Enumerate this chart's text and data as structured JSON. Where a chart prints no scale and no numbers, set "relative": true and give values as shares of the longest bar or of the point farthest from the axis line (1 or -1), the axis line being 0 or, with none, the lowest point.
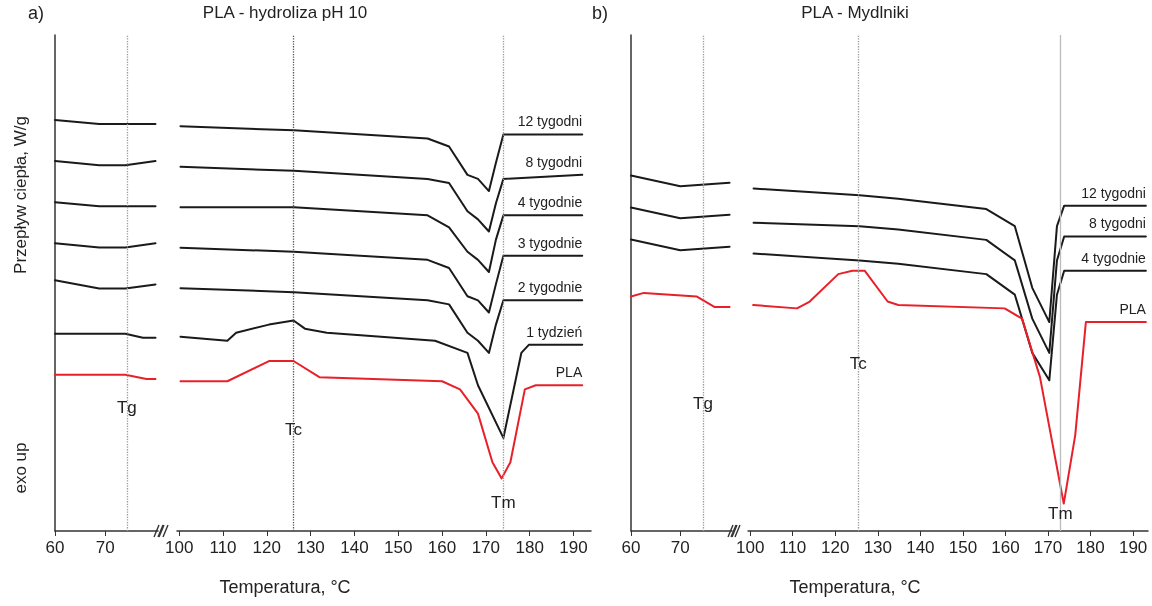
{
  "chart_data": [
    {
      "type": "line",
      "ylabel": "Przepływ ciepła, W/g",
      "relative": true,
      "marker": "none",
      "xlim": [
        60,
        80.5
      ],
      "xticks": [
        60,
        70
      ],
      "series": [
        {
          "color": "#1a1a1a",
          "x": [
            60,
            68.8,
            74,
            80
          ],
          "values": [
            1.0,
            0.99,
            0.99,
            0.99
          ]
        },
        {
          "color": "#1a1a1a",
          "x": [
            60,
            68.8,
            74,
            80
          ],
          "values": [
            0.9,
            0.89,
            0.89,
            0.9
          ]
        },
        {
          "color": "#1a1a1a",
          "x": [
            60,
            68.8,
            74,
            80
          ],
          "values": [
            0.8,
            0.79,
            0.79,
            0.79
          ]
        },
        {
          "color": "#1a1a1a",
          "x": [
            60,
            68.8,
            74,
            80
          ],
          "values": [
            0.7,
            0.69,
            0.69,
            0.7
          ]
        },
        {
          "color": "#1a1a1a",
          "x": [
            60,
            68.8,
            74,
            80
          ],
          "values": [
            0.61,
            0.59,
            0.59,
            0.6
          ]
        },
        {
          "color": "#1a1a1a",
          "x": [
            60,
            74,
            77.5,
            80
          ],
          "values": [
            0.48,
            0.48,
            0.47,
            0.47
          ]
        },
        {
          "color": "#e8202a",
          "x": [
            60,
            74,
            78.2,
            80
          ],
          "values": [
            0.38,
            0.38,
            0.37,
            0.37
          ]
        }
      ],
      "ref_lines": [
        {
          "axis": "x",
          "value": 74.3,
          "color": "#999999",
          "line_style": "dotted"
        }
      ],
      "annotations": [
        "a)",
        "exo up",
        {
          "text": "Tg",
          "x": 74.3,
          "y": 0.3
        }
      ]
    },
    {
      "type": "line",
      "title": "PLA - hydroliza pH 10",
      "xlabel": "Temperatura, °C",
      "relative": true,
      "marker": "none",
      "xlim": [
        99.5,
        194
      ],
      "xticks": [
        100,
        110,
        120,
        130,
        140,
        150,
        160,
        170,
        180,
        190
      ],
      "series": [
        {
          "name": "12 tygodni",
          "color": "#1a1a1a",
          "x": [
            100.3,
            126.2,
            156.7,
            161.6,
            165.8,
            168.2,
            170.7,
            172.3,
            174,
            192
          ],
          "values": [
            1.0,
            0.99,
            0.97,
            0.95,
            0.88,
            0.87,
            0.84,
            0.91,
            0.98,
            0.98
          ]
        },
        {
          "name": "8 tygodni",
          "color": "#1a1a1a",
          "x": [
            100.3,
            126.2,
            156.7,
            161.6,
            165.8,
            168.2,
            170.7,
            172.3,
            174,
            192
          ],
          "values": [
            0.9,
            0.89,
            0.87,
            0.86,
            0.79,
            0.77,
            0.74,
            0.81,
            0.87,
            0.88
          ]
        },
        {
          "name": "4 tygodnie",
          "color": "#1a1a1a",
          "x": [
            100.3,
            126.2,
            156.7,
            161.6,
            165.8,
            168.2,
            170.7,
            172.3,
            174,
            192
          ],
          "values": [
            0.8,
            0.8,
            0.78,
            0.75,
            0.69,
            0.67,
            0.64,
            0.72,
            0.78,
            0.78
          ]
        },
        {
          "name": "3 tygodnie",
          "color": "#1a1a1a",
          "x": [
            100.3,
            126.2,
            156.7,
            161.6,
            165.8,
            168.2,
            170.7,
            172.3,
            174,
            192
          ],
          "values": [
            0.7,
            0.69,
            0.67,
            0.65,
            0.58,
            0.57,
            0.54,
            0.61,
            0.68,
            0.68
          ]
        },
        {
          "name": "2 tygodnie",
          "color": "#1a1a1a",
          "x": [
            100.3,
            126.2,
            156.7,
            161.6,
            165.8,
            168.2,
            170.7,
            172.3,
            174,
            192
          ],
          "values": [
            0.6,
            0.59,
            0.57,
            0.56,
            0.49,
            0.47,
            0.44,
            0.51,
            0.57,
            0.57
          ]
        },
        {
          "name": "1 tydzień",
          "color": "#1a1a1a",
          "x": [
            100.3,
            111,
            113,
            120.5,
            126.1,
            128.7,
            133.7,
            158.4,
            165.8,
            168.2,
            174,
            178.1,
            179.8,
            192
          ],
          "values": [
            0.48,
            0.47,
            0.49,
            0.51,
            0.52,
            0.5,
            0.49,
            0.47,
            0.44,
            0.36,
            0.23,
            0.44,
            0.46,
            0.46
          ]
        },
        {
          "name": "PLA",
          "color": "#e8202a",
          "x": [
            100.3,
            111,
            120.5,
            126.1,
            132,
            160,
            164.1,
            168.2,
            171.5,
            173.6,
            175.6,
            178.9,
            181.4,
            192
          ],
          "values": [
            0.37,
            0.37,
            0.42,
            0.42,
            0.38,
            0.37,
            0.35,
            0.29,
            0.17,
            0.13,
            0.17,
            0.35,
            0.36,
            0.36
          ]
        }
      ],
      "ref_lines": [
        {
          "axis": "x",
          "value": 126.1,
          "color": "#555555",
          "line_style": "dotted"
        },
        {
          "axis": "x",
          "value": 174,
          "color": "#999999",
          "line_style": "dotted"
        }
      ],
      "annotations": [
        {
          "text": "Tc",
          "x": 126.1,
          "y": 0.25
        },
        {
          "text": "Tm",
          "x": 174,
          "y": 0.07
        }
      ]
    },
    {
      "type": "line",
      "relative": true,
      "marker": "none",
      "xlim": [
        60,
        80.5
      ],
      "xticks": [
        60,
        70
      ],
      "series": [
        {
          "color": "#1a1a1a",
          "x": [
            60,
            70,
            80
          ],
          "values": [
            1.0,
            0.97,
            0.98
          ]
        },
        {
          "color": "#1a1a1a",
          "x": [
            60,
            70,
            80
          ],
          "values": [
            0.91,
            0.88,
            0.89
          ]
        },
        {
          "color": "#1a1a1a",
          "x": [
            60,
            70,
            80
          ],
          "values": [
            0.82,
            0.79,
            0.8
          ]
        },
        {
          "color": "#e8202a",
          "x": [
            60,
            62.6,
            73.3,
            77,
            80
          ],
          "values": [
            0.66,
            0.67,
            0.66,
            0.63,
            0.63
          ]
        }
      ],
      "ref_lines": [
        {
          "axis": "x",
          "value": 74.6,
          "color": "#999999",
          "line_style": "dotted"
        }
      ],
      "annotations": [
        "b)",
        {
          "text": "Tg",
          "x": 74.6,
          "y": 0.36
        }
      ]
    },
    {
      "type": "line",
      "title": "PLA - Mydlniki",
      "xlabel": "Temperatura, °C",
      "relative": true,
      "marker": "none",
      "xlim": [
        99.5,
        193.5
      ],
      "xticks": [
        100,
        110,
        120,
        130,
        140,
        150,
        160,
        170,
        180,
        190
      ],
      "series": [
        {
          "name": "12 tygodni",
          "color": "#1a1a1a",
          "x": [
            100.8,
            125.7,
            134.8,
            155.5,
            162.2,
            166.3,
            170.3,
            172.1,
            173.8,
            193
          ],
          "values": [
            1.0,
            0.98,
            0.97,
            0.94,
            0.89,
            0.71,
            0.61,
            0.89,
            0.95,
            0.95
          ]
        },
        {
          "name": "8 tygodni",
          "color": "#1a1a1a",
          "x": [
            100.8,
            125.7,
            134.8,
            155.5,
            162.2,
            166.3,
            170.3,
            172.1,
            173.8,
            193
          ],
          "values": [
            0.9,
            0.89,
            0.88,
            0.85,
            0.79,
            0.62,
            0.52,
            0.79,
            0.86,
            0.86
          ]
        },
        {
          "name": "4 tygodnie",
          "color": "#1a1a1a",
          "x": [
            100.8,
            125.7,
            134.8,
            155.5,
            162.2,
            166.3,
            170.3,
            172.1,
            173.8,
            193
          ],
          "values": [
            0.81,
            0.79,
            0.78,
            0.75,
            0.69,
            0.52,
            0.44,
            0.69,
            0.76,
            0.76
          ]
        },
        {
          "name": "PLA",
          "color": "#e8202a",
          "x": [
            100.7,
            111,
            114,
            120.7,
            124,
            126.9,
            132.3,
            134.8,
            159.8,
            163.9,
            168.1,
            173.7,
            176.4,
            178.9,
            180.6,
            193
          ],
          "values": [
            0.66,
            0.65,
            0.67,
            0.75,
            0.76,
            0.76,
            0.67,
            0.66,
            0.65,
            0.62,
            0.45,
            0.08,
            0.28,
            0.61,
            0.61,
            0.61
          ]
        }
      ],
      "ref_lines": [
        {
          "axis": "x",
          "value": 125.4,
          "color": "#999999",
          "line_style": "dotted"
        },
        {
          "axis": "x",
          "value": 172.9,
          "color": "#bbbbbb",
          "line_style": "solid"
        }
      ],
      "annotations": [
        {
          "text": "Tc",
          "x": 125.4,
          "y": 0.49
        },
        {
          "text": "Tm",
          "x": 172.9,
          "y": 0.05
        }
      ]
    }
  ]
}
